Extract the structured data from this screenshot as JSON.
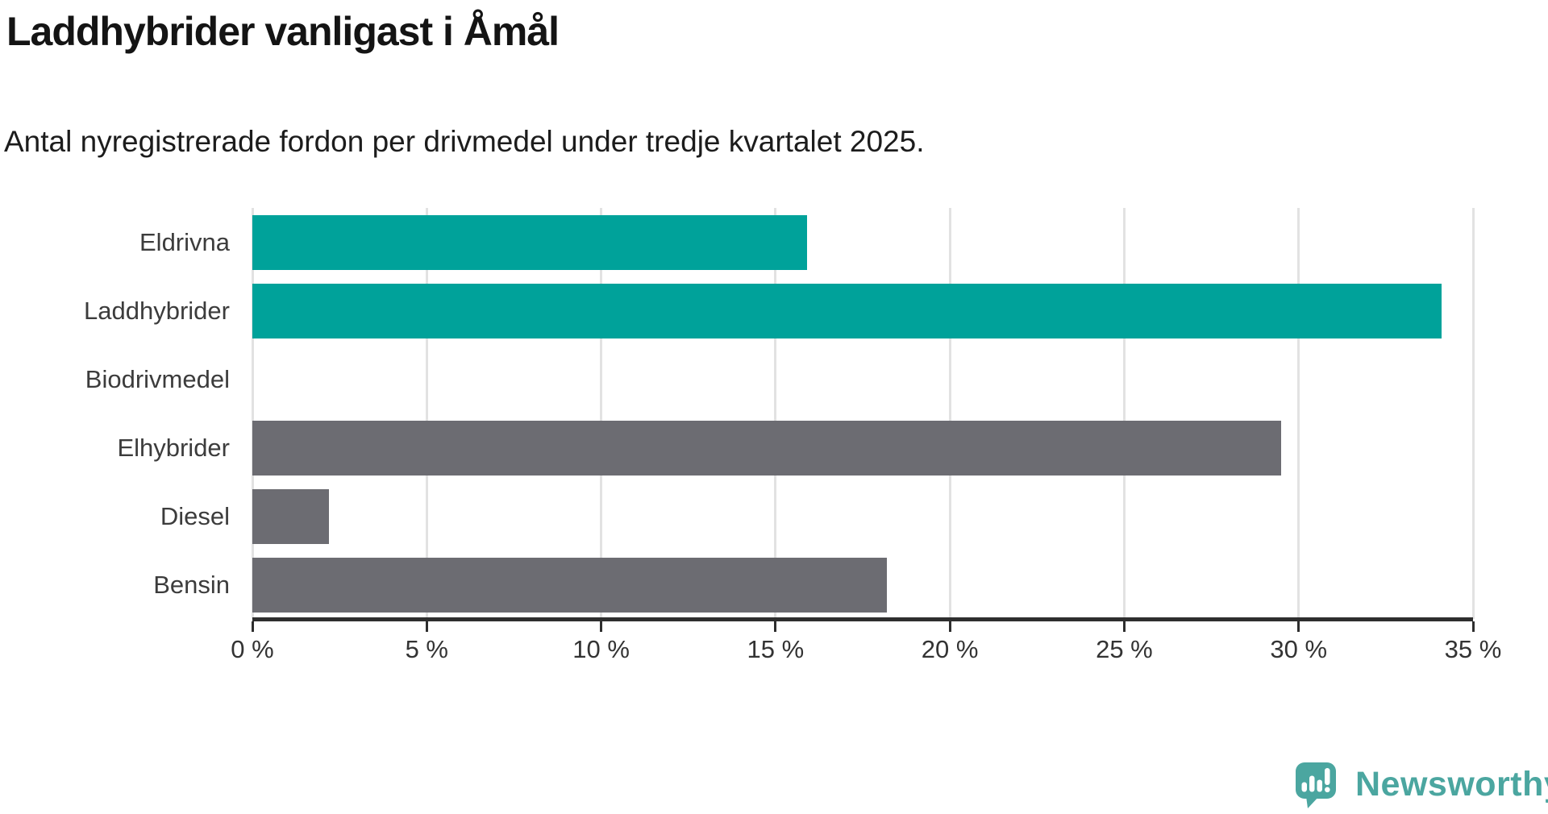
{
  "title": "Laddhybrider vanligast i Åmål",
  "subtitle": "Antal nyregistrerade fordon per drivmedel under tredje kvartalet 2025.",
  "chart_data": {
    "type": "bar",
    "orientation": "horizontal",
    "title": "Laddhybrider vanligast i Åmål",
    "subtitle": "Antal nyregistrerade fordon per drivmedel under tredje kvartalet 2025.",
    "categories": [
      "Eldrivna",
      "Laddhybrider",
      "Biodrivmedel",
      "Elhybrider",
      "Diesel",
      "Bensin"
    ],
    "values": [
      15.9,
      34.1,
      0,
      29.5,
      2.2,
      18.2
    ],
    "unit": "%",
    "bar_colors": [
      "#00a29a",
      "#00a29a",
      "#6c6c72",
      "#6c6c72",
      "#6c6c72",
      "#6c6c72"
    ],
    "highlight_color": "#00a29a",
    "default_color": "#6c6c72",
    "xlim": [
      0,
      35
    ],
    "x_tick_values": [
      0,
      5,
      10,
      15,
      20,
      25,
      30,
      35
    ],
    "x_ticks": [
      "0 %",
      "5 %",
      "10 %",
      "15 %",
      "20 %",
      "25 %",
      "30 %",
      "35 %"
    ],
    "grid": "vertical-only",
    "legend": "none",
    "xlabel": "",
    "ylabel": ""
  },
  "branding": {
    "logo_text": "Newsworthy",
    "logo_color": "#4ba6a0"
  }
}
